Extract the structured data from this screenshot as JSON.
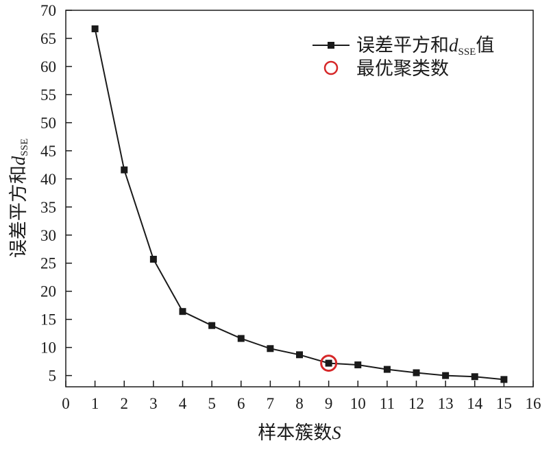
{
  "chart_data": {
    "type": "line",
    "xlabel": {
      "text": "样本簇数",
      "var": "S"
    },
    "ylabel": {
      "text": "误差平方和",
      "var": "d",
      "sub": "SSE"
    },
    "xlim": [
      0,
      16
    ],
    "ylim": [
      3,
      70
    ],
    "xticks": [
      0,
      1,
      2,
      3,
      4,
      5,
      6,
      7,
      8,
      9,
      10,
      11,
      12,
      13,
      14,
      15,
      16
    ],
    "yticks": [
      5,
      10,
      15,
      20,
      25,
      30,
      35,
      40,
      45,
      50,
      55,
      60,
      65,
      70
    ],
    "grid": false,
    "legend_position": "top-right",
    "series": [
      {
        "name": {
          "text": "误差平方和",
          "var": "d",
          "sub": "SSE",
          "suffix": "值"
        },
        "marker": "square",
        "color": "#1a1a1a",
        "x": [
          1,
          2,
          3,
          4,
          5,
          6,
          7,
          8,
          9,
          10,
          11,
          12,
          13,
          14,
          15
        ],
        "y": [
          66.7,
          41.6,
          25.7,
          16.4,
          13.9,
          11.6,
          9.8,
          8.7,
          7.2,
          6.9,
          6.1,
          5.5,
          5.0,
          4.8,
          4.3
        ]
      }
    ],
    "highlight": {
      "name": "最优聚类数",
      "x": 9,
      "y": 7.2,
      "marker": "circle",
      "color": "#d62728"
    }
  }
}
